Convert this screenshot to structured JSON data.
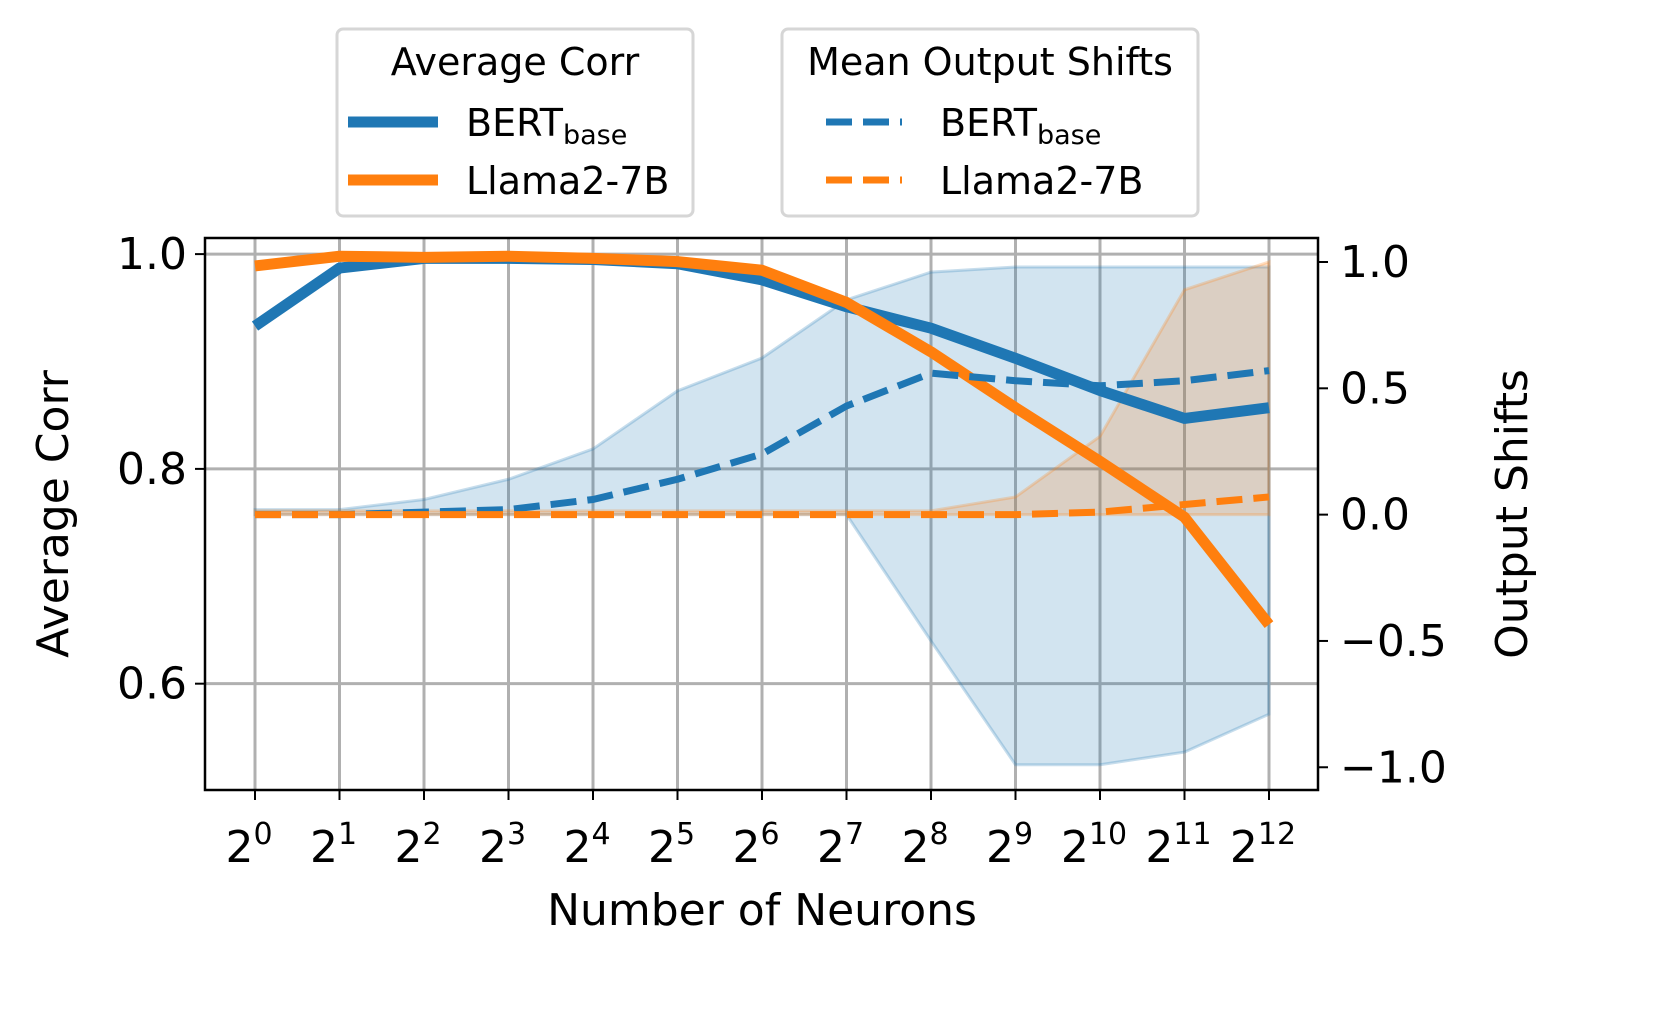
{
  "chart_data": {
    "type": "line",
    "xlabel": "Number of Neurons",
    "ylabel_left": "Average Corr",
    "ylabel_right": "Output Shifts",
    "x_scale": "log2",
    "x": [
      1,
      2,
      4,
      8,
      16,
      32,
      64,
      128,
      256,
      512,
      1024,
      2048,
      4096
    ],
    "xtick_base": "2",
    "xtick_exponents": [
      "0",
      "1",
      "2",
      "3",
      "4",
      "5",
      "6",
      "7",
      "8",
      "9",
      "10",
      "11",
      "12"
    ],
    "ylim_left": [
      0.501,
      1.015
    ],
    "yticks_left": [
      "0.6",
      "0.8",
      "1.0"
    ],
    "ylim_right": [
      -1.09,
      1.095
    ],
    "yticks_right": [
      "−1.0",
      "−0.5",
      "0.0",
      "0.5",
      "1.0"
    ],
    "ytick_values_right": [
      -1.0,
      -0.5,
      0.0,
      0.5,
      1.0
    ],
    "ytick_values_left": [
      0.6,
      0.8,
      1.0
    ],
    "grid": true,
    "colors": {
      "bert": "#1f77b4",
      "llama": "#ff7f0e"
    },
    "legends": [
      {
        "title": "Average Corr",
        "placement": "top-left-outside",
        "entries": [
          {
            "name": "BERT",
            "sub": "base",
            "style": "solid",
            "color": "#1f77b4"
          },
          {
            "name": "Llama2-7B",
            "sub": "",
            "style": "solid",
            "color": "#ff7f0e"
          }
        ]
      },
      {
        "title": "Mean Output Shifts",
        "placement": "top-right-outside",
        "entries": [
          {
            "name": "BERT",
            "sub": "base",
            "style": "dashed",
            "color": "#1f77b4"
          },
          {
            "name": "Llama2-7B",
            "sub": "",
            "style": "dashed",
            "color": "#ff7f0e"
          }
        ]
      }
    ],
    "series": [
      {
        "name": "BERT",
        "sub": "base",
        "axis": "left",
        "style": "solid",
        "color": "#1f77b4",
        "values": [
          0.933,
          0.987,
          0.996,
          0.996,
          0.995,
          0.991,
          0.976,
          0.951,
          0.931,
          0.903,
          0.873,
          0.847,
          0.857
        ]
      },
      {
        "name": "Llama2-7B",
        "axis": "left",
        "style": "solid",
        "color": "#ff7f0e",
        "values": [
          0.989,
          0.998,
          0.997,
          0.998,
          0.996,
          0.993,
          0.985,
          0.955,
          0.909,
          0.857,
          0.807,
          0.755,
          0.655
        ]
      },
      {
        "name": "BERT",
        "sub": "base",
        "axis": "right",
        "style": "dashed",
        "color": "#1f77b4",
        "values": [
          0.0,
          0.0,
          0.01,
          0.02,
          0.06,
          0.14,
          0.24,
          0.43,
          0.56,
          0.53,
          0.51,
          0.53,
          0.57
        ],
        "band_upper": [
          0.02,
          0.02,
          0.06,
          0.14,
          0.26,
          0.49,
          0.62,
          0.85,
          0.96,
          0.98,
          0.98,
          0.98,
          0.98
        ],
        "band_lower": [
          0.0,
          0.0,
          0.0,
          0.0,
          0.0,
          0.0,
          0.0,
          0.0,
          -0.5,
          -0.99,
          -0.99,
          -0.94,
          -0.79
        ]
      },
      {
        "name": "Llama2-7B",
        "axis": "right",
        "style": "dashed",
        "color": "#ff7f0e",
        "values": [
          0.0,
          0.0,
          0.0,
          0.0,
          0.0,
          0.0,
          0.0,
          0.0,
          0.0,
          0.0,
          0.01,
          0.04,
          0.07
        ],
        "band_upper": [
          0.015,
          0.015,
          0.015,
          0.015,
          0.015,
          0.015,
          0.015,
          0.015,
          0.015,
          0.07,
          0.31,
          0.89,
          1.0
        ],
        "band_lower": [
          0.0,
          0.0,
          0.0,
          0.0,
          0.0,
          0.0,
          0.0,
          0.0,
          0.0,
          0.0,
          0.0,
          0.0,
          0.0
        ]
      }
    ]
  }
}
